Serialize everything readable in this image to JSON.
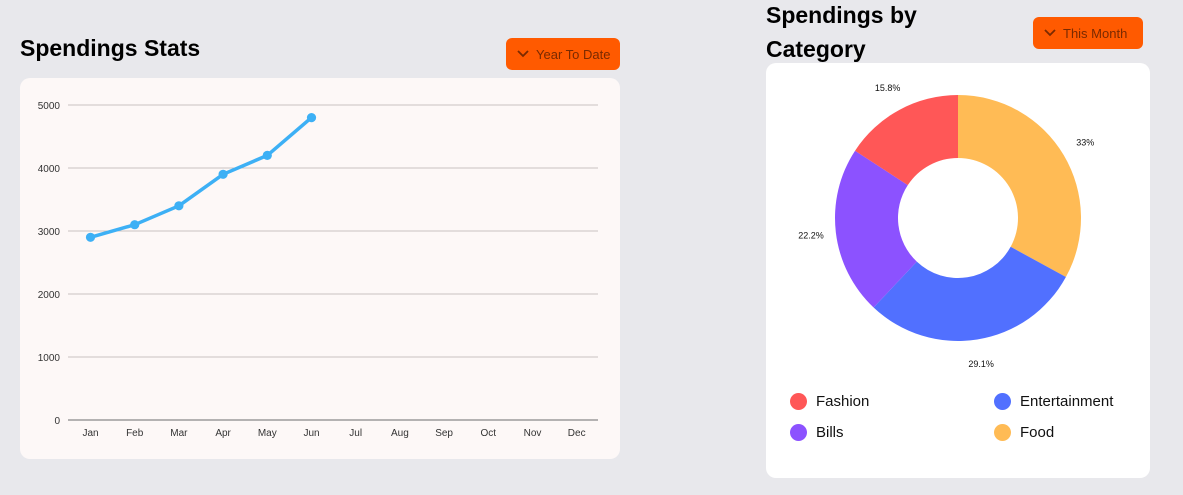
{
  "left_panel": {
    "title": "Spendings Stats",
    "dropdown_label": "Year To Date",
    "dropdown_icon": "chevron-down-icon"
  },
  "right_panel": {
    "title": "Spendings by Category",
    "dropdown_label": "This Month",
    "dropdown_icon": "chevron-down-icon"
  },
  "colors": {
    "accent": "#ff5a00",
    "line": "#3db0f5",
    "fashion": "#ff5757",
    "entertainment": "#5170ff",
    "bills": "#8c52ff",
    "food": "#ffbb55"
  },
  "chart_data": [
    {
      "type": "line",
      "categories": [
        "Jan",
        "Feb",
        "Mar",
        "Apr",
        "May",
        "Jun",
        "Jul",
        "Aug",
        "Sep",
        "Oct",
        "Nov",
        "Dec"
      ],
      "series": [
        {
          "values": [
            2900,
            3100,
            3400,
            3900,
            4200,
            4800,
            null,
            null,
            null,
            null,
            null,
            null
          ]
        }
      ],
      "yticks": [
        "0",
        "1000",
        "2000",
        "3000",
        "4000",
        "5000"
      ],
      "ylim": [
        0,
        5000
      ],
      "grid": true
    },
    {
      "type": "pie",
      "labels": [
        "Fashion",
        "Entertainment",
        "Bills",
        "Food"
      ],
      "values": [
        15.8,
        29.1,
        22.2,
        33
      ],
      "value_labels": [
        "15.8%",
        "29.1%",
        "22.2%",
        "33%"
      ],
      "donut": true,
      "legend_position": "bottom"
    }
  ]
}
